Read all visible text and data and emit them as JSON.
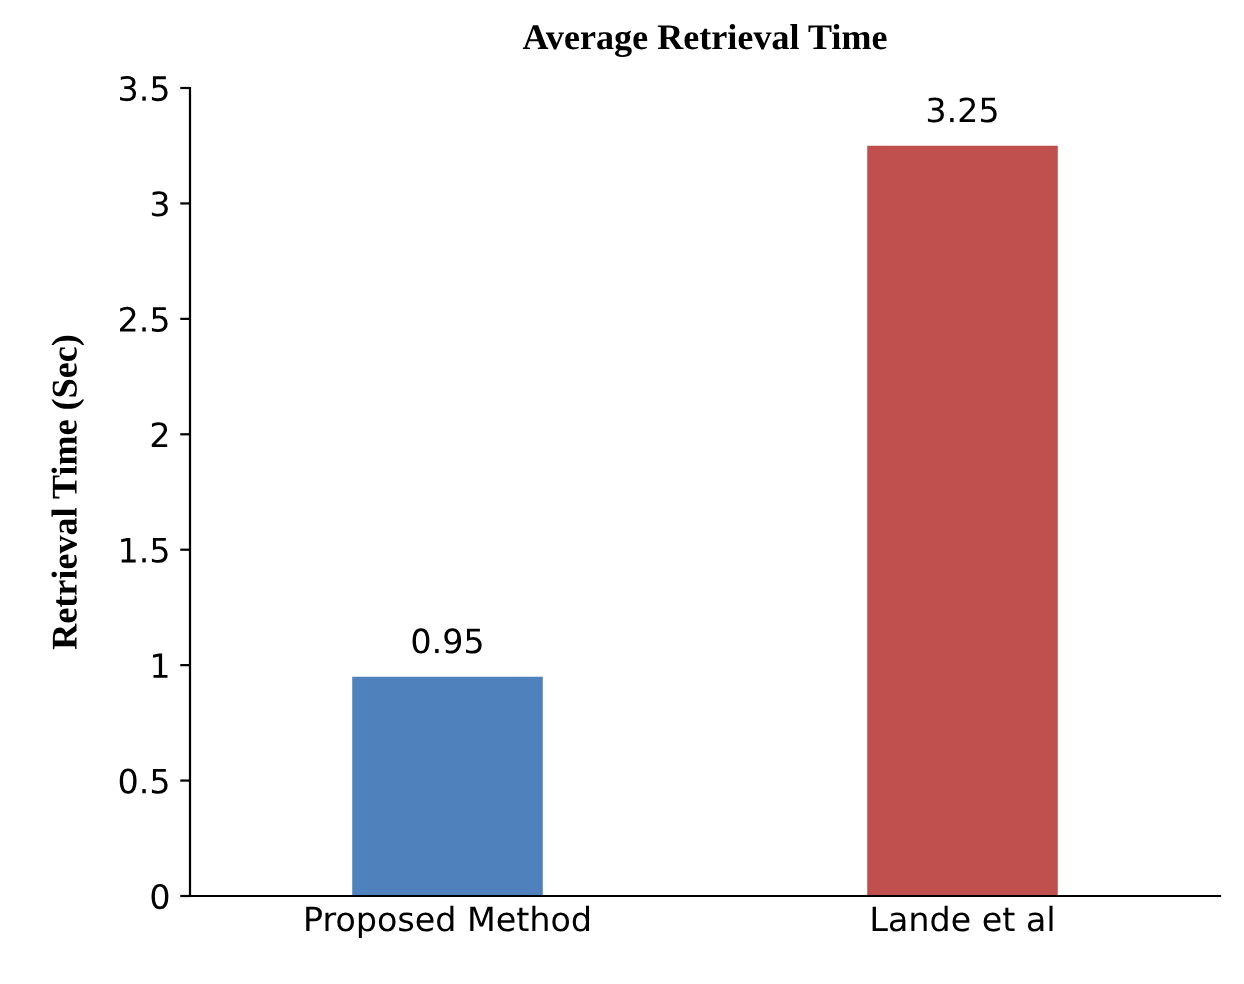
{
  "chart_data": {
    "type": "bar",
    "title": "Average Retrieval Time",
    "ylabel": "Retrieval Time (Sec)",
    "categories": [
      "Proposed Method",
      "Lande et al"
    ],
    "values": [
      0.95,
      3.25
    ],
    "colors": [
      "#4f81bd",
      "#c0504d"
    ],
    "ylim": [
      0,
      3.5
    ],
    "yticks": [
      0,
      0.5,
      1,
      1.5,
      2,
      2.5,
      3,
      3.5
    ],
    "data_labels": true,
    "grid": false,
    "legend": false
  }
}
